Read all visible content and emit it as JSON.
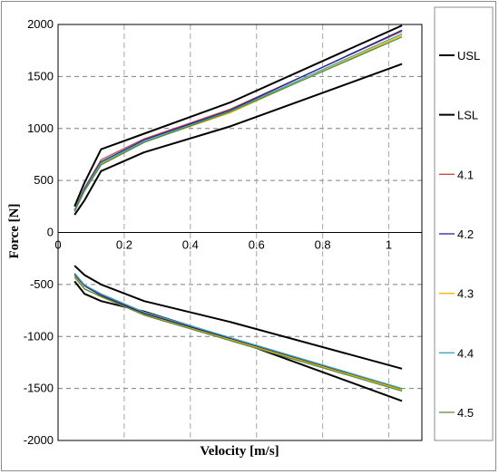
{
  "chart_data": {
    "type": "line",
    "title": "",
    "xlabel": "Velocity [m/s]",
    "ylabel": "Force [N]",
    "xlim": [
      0,
      1.1
    ],
    "ylim": [
      -2000,
      2000
    ],
    "x_ticks": [
      "0",
      "0.2",
      "0.4",
      "0.6",
      "0.8",
      "1"
    ],
    "y_ticks": [
      "-2000",
      "-1500",
      "-1000",
      "-500",
      "0",
      "500",
      "1000",
      "1500",
      "2000"
    ],
    "grid": "dashed",
    "legend_position": "right",
    "series": [
      {
        "name": "USL",
        "color": "#000000",
        "width": 2,
        "points": [
          [
            0.05,
            250
          ],
          [
            0.08,
            480
          ],
          [
            0.13,
            800
          ],
          [
            0.26,
            950
          ],
          [
            0.52,
            1250
          ],
          [
            1.04,
            1990
          ]
        ],
        "points_negative": [
          [
            0.05,
            -320
          ],
          [
            0.08,
            -410
          ],
          [
            0.13,
            -500
          ],
          [
            0.26,
            -660
          ],
          [
            0.52,
            -860
          ],
          [
            1.04,
            -1310
          ]
        ]
      },
      {
        "name": "LSL",
        "color": "#000000",
        "width": 2,
        "points": [
          [
            0.05,
            170
          ],
          [
            0.08,
            310
          ],
          [
            0.13,
            590
          ],
          [
            0.26,
            770
          ],
          [
            0.52,
            1020
          ],
          [
            1.04,
            1620
          ]
        ],
        "points_negative": [
          [
            0.05,
            -470
          ],
          [
            0.08,
            -590
          ],
          [
            0.13,
            -660
          ],
          [
            0.26,
            -760
          ],
          [
            0.52,
            -1020
          ],
          [
            1.04,
            -1620
          ]
        ]
      },
      {
        "name": "4.1",
        "color": "#c0504d",
        "width": 1.3,
        "points": [
          [
            0.05,
            215
          ],
          [
            0.08,
            430
          ],
          [
            0.13,
            700
          ],
          [
            0.26,
            900
          ],
          [
            0.52,
            1185
          ],
          [
            1.04,
            1935
          ]
        ],
        "points_negative": [
          [
            0.05,
            -400
          ],
          [
            0.08,
            -510
          ],
          [
            0.13,
            -600
          ],
          [
            0.26,
            -770
          ],
          [
            0.52,
            -1030
          ],
          [
            1.04,
            -1510
          ]
        ]
      },
      {
        "name": "4.2",
        "color": "#1f1f8f",
        "width": 1.3,
        "points": [
          [
            0.05,
            212
          ],
          [
            0.08,
            420
          ],
          [
            0.13,
            680
          ],
          [
            0.26,
            890
          ],
          [
            0.52,
            1175
          ],
          [
            1.04,
            1945
          ]
        ],
        "points_negative": [
          [
            0.05,
            -405
          ],
          [
            0.08,
            -515
          ],
          [
            0.13,
            -605
          ],
          [
            0.26,
            -780
          ],
          [
            0.52,
            -1020
          ],
          [
            1.04,
            -1505
          ]
        ]
      },
      {
        "name": "4.3",
        "color": "#f2b800",
        "width": 1.3,
        "points": [
          [
            0.05,
            205
          ],
          [
            0.08,
            405
          ],
          [
            0.13,
            660
          ],
          [
            0.26,
            870
          ],
          [
            0.52,
            1150
          ],
          [
            1.04,
            1895
          ]
        ],
        "points_negative": [
          [
            0.05,
            -420
          ],
          [
            0.08,
            -540
          ],
          [
            0.13,
            -620
          ],
          [
            0.26,
            -790
          ],
          [
            0.52,
            -1030
          ],
          [
            1.04,
            -1515
          ]
        ]
      },
      {
        "name": "4.4",
        "color": "#3fa9b0",
        "width": 1.3,
        "points": [
          [
            0.05,
            208
          ],
          [
            0.08,
            410
          ],
          [
            0.13,
            670
          ],
          [
            0.26,
            875
          ],
          [
            0.52,
            1165
          ],
          [
            1.04,
            1910
          ]
        ],
        "points_negative": [
          [
            0.05,
            -390
          ],
          [
            0.08,
            -505
          ],
          [
            0.13,
            -590
          ],
          [
            0.26,
            -765
          ],
          [
            0.52,
            -1010
          ],
          [
            1.04,
            -1500
          ]
        ]
      },
      {
        "name": "4.5",
        "color": "#5a8a3a",
        "width": 1.3,
        "points": [
          [
            0.05,
            200
          ],
          [
            0.08,
            400
          ],
          [
            0.13,
            650
          ],
          [
            0.26,
            865
          ],
          [
            0.52,
            1160
          ],
          [
            1.04,
            1880
          ]
        ],
        "points_negative": [
          [
            0.05,
            -430
          ],
          [
            0.08,
            -545
          ],
          [
            0.13,
            -615
          ],
          [
            0.26,
            -795
          ],
          [
            0.52,
            -1040
          ],
          [
            1.04,
            -1525
          ]
        ]
      }
    ]
  }
}
